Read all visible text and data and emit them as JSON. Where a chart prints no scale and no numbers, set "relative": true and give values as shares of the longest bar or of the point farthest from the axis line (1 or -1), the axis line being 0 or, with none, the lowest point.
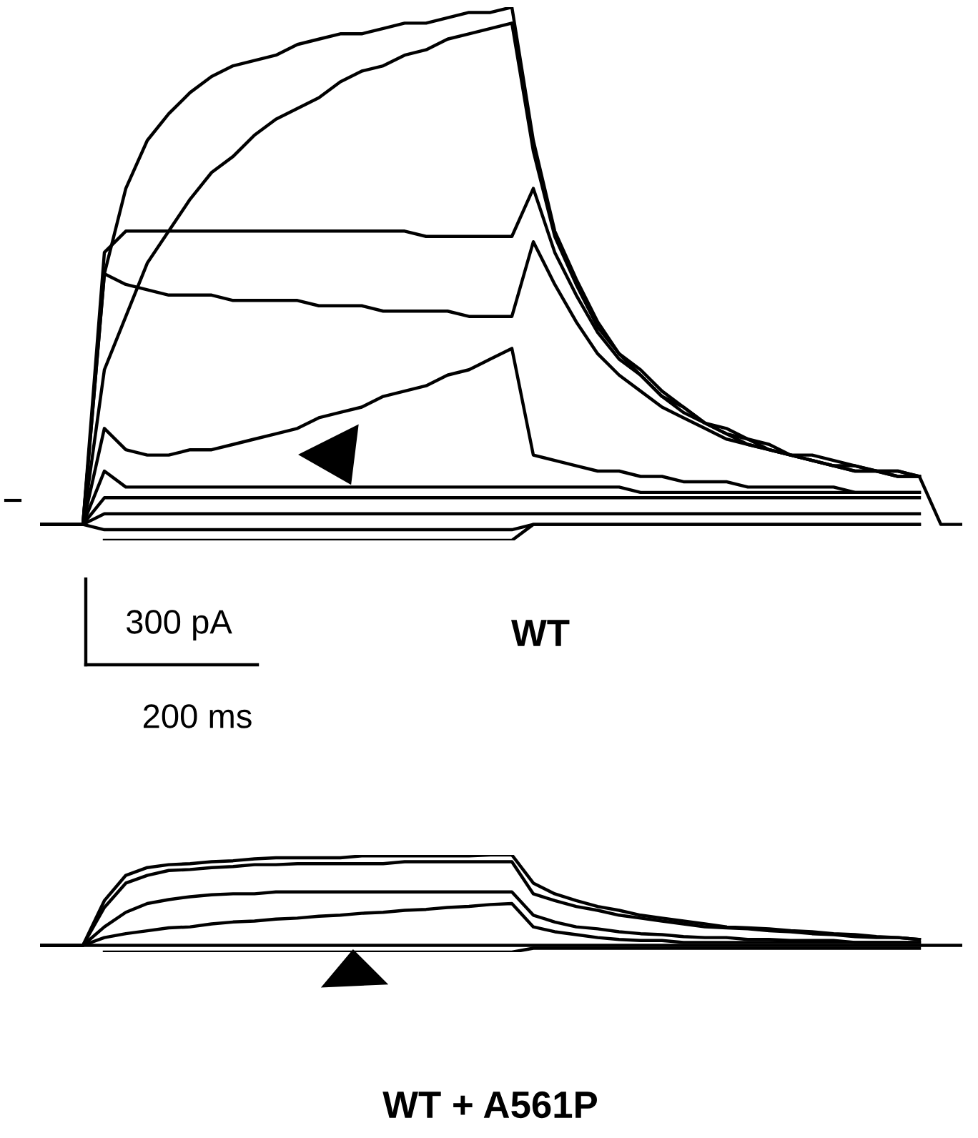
{
  "chart_data": [
    {
      "type": "line",
      "relative": true,
      "title": "WT",
      "annotations": [
        "300 pA",
        "200 ms"
      ],
      "categories": [
        null,
        null,
        null,
        null,
        null,
        null,
        null,
        null,
        null,
        null,
        null,
        null,
        null,
        null,
        null,
        null,
        null,
        null,
        null,
        null,
        null,
        null,
        null,
        null,
        null,
        null,
        null,
        null,
        null,
        null,
        null,
        null,
        null,
        null,
        null,
        null,
        null,
        null,
        null,
        null,
        null,
        null,
        null,
        null
      ],
      "series": [
        {
          "color": "#000000",
          "values": [
            0.03,
            0.03,
            0.03,
            0.5,
            0.66,
            0.75,
            0.8,
            0.84,
            0.87,
            0.89,
            0.9,
            0.91,
            0.93,
            0.94,
            0.95,
            0.95,
            0.96,
            0.97,
            0.97,
            0.98,
            0.99,
            0.99,
            1.0,
            0.75,
            0.58,
            0.49,
            0.41,
            0.35,
            0.32,
            0.28,
            0.25,
            0.22,
            0.21,
            0.19,
            0.18,
            0.16,
            0.16,
            0.15,
            0.14,
            0.13,
            0.13,
            0.12,
            0.03,
            0.03
          ]
        },
        {
          "color": "#000000",
          "values": [
            0.03,
            0.03,
            0.03,
            0.32,
            0.42,
            0.52,
            0.58,
            0.64,
            0.69,
            0.72,
            0.76,
            0.79,
            0.81,
            0.83,
            0.86,
            0.88,
            0.89,
            0.91,
            0.92,
            0.94,
            0.95,
            0.96,
            0.97,
            0.73,
            0.57,
            0.48,
            0.4,
            0.35,
            0.31,
            0.27,
            0.25,
            0.22,
            0.2,
            0.19,
            0.17,
            0.16,
            0.15,
            0.14,
            0.14,
            0.13,
            0.13,
            0.12,
            null,
            null
          ]
        },
        {
          "color": "#000000",
          "values": [
            0.03,
            0.03,
            0.03,
            0.54,
            0.58,
            0.58,
            0.58,
            0.58,
            0.58,
            0.58,
            0.58,
            0.58,
            0.58,
            0.58,
            0.58,
            0.58,
            0.58,
            0.58,
            0.57,
            0.57,
            0.57,
            0.57,
            0.57,
            0.66,
            0.54,
            0.46,
            0.39,
            0.34,
            0.31,
            0.27,
            0.24,
            0.22,
            0.2,
            0.18,
            0.17,
            0.16,
            0.15,
            0.14,
            0.13,
            0.13,
            0.12,
            0.12,
            null,
            null
          ]
        },
        {
          "color": "#000000",
          "values": [
            0.03,
            0.03,
            0.03,
            0.5,
            0.48,
            0.47,
            0.46,
            0.46,
            0.46,
            0.45,
            0.45,
            0.45,
            0.45,
            0.44,
            0.44,
            0.44,
            0.43,
            0.43,
            0.43,
            0.43,
            0.42,
            0.42,
            0.42,
            0.56,
            0.48,
            0.41,
            0.35,
            0.31,
            0.28,
            0.25,
            0.23,
            0.21,
            0.19,
            0.18,
            0.17,
            0.16,
            0.15,
            0.14,
            0.13,
            0.13,
            0.12,
            0.12,
            null,
            null
          ]
        },
        {
          "color": "#000000",
          "values": [
            0.03,
            0.03,
            0.03,
            0.21,
            0.17,
            0.16,
            0.16,
            0.17,
            0.17,
            0.18,
            0.19,
            0.2,
            0.21,
            0.23,
            0.24,
            0.25,
            0.27,
            0.28,
            0.29,
            0.31,
            0.32,
            0.34,
            0.36,
            0.16,
            0.15,
            0.14,
            0.13,
            0.13,
            0.12,
            0.12,
            0.11,
            0.11,
            0.11,
            0.1,
            0.1,
            0.1,
            0.1,
            0.1,
            0.09,
            0.09,
            0.09,
            0.09,
            null,
            null
          ]
        },
        {
          "color": "#000000",
          "values": [
            0.03,
            0.03,
            0.03,
            0.13,
            0.1,
            0.1,
            0.1,
            0.1,
            0.1,
            0.1,
            0.1,
            0.1,
            0.1,
            0.1,
            0.1,
            0.1,
            0.1,
            0.1,
            0.1,
            0.1,
            0.1,
            0.1,
            0.1,
            0.1,
            0.1,
            0.1,
            0.1,
            0.1,
            0.09,
            0.09,
            0.09,
            0.09,
            0.09,
            0.09,
            0.09,
            0.09,
            0.09,
            0.09,
            0.09,
            0.09,
            0.09,
            0.09,
            null,
            null
          ]
        },
        {
          "color": "#000000",
          "values": [
            0.03,
            0.03,
            0.03,
            0.08,
            0.08,
            0.08,
            0.08,
            0.08,
            0.08,
            0.08,
            0.08,
            0.08,
            0.08,
            0.08,
            0.08,
            0.08,
            0.08,
            0.08,
            0.08,
            0.08,
            0.08,
            0.08,
            0.08,
            0.08,
            0.08,
            0.08,
            0.08,
            0.08,
            0.08,
            0.08,
            0.08,
            0.08,
            0.08,
            0.08,
            0.08,
            0.08,
            0.08,
            0.08,
            0.08,
            0.08,
            0.08,
            0.08,
            null,
            null
          ]
        },
        {
          "color": "#000000",
          "values": [
            0.03,
            0.03,
            0.03,
            0.05,
            0.05,
            0.05,
            0.05,
            0.05,
            0.05,
            0.05,
            0.05,
            0.05,
            0.05,
            0.05,
            0.05,
            0.05,
            0.05,
            0.05,
            0.05,
            0.05,
            0.05,
            0.05,
            0.05,
            0.05,
            0.05,
            0.05,
            0.05,
            0.05,
            0.05,
            0.05,
            0.05,
            0.05,
            0.05,
            0.05,
            0.05,
            0.05,
            0.05,
            0.05,
            0.05,
            0.05,
            0.05,
            0.05,
            null,
            null
          ]
        },
        {
          "color": "#000000",
          "values": [
            0.03,
            0.03,
            0.03,
            0.02,
            0.02,
            0.02,
            0.02,
            0.02,
            0.02,
            0.02,
            0.02,
            0.02,
            0.02,
            0.02,
            0.02,
            0.02,
            0.02,
            0.02,
            0.02,
            0.02,
            0.02,
            0.02,
            0.02,
            0.03,
            0.03,
            0.03,
            0.03,
            0.03,
            0.03,
            0.03,
            0.03,
            0.03,
            0.03,
            0.03,
            0.03,
            0.03,
            0.03,
            0.03,
            0.03,
            0.03,
            0.03,
            0.03,
            null,
            null
          ]
        },
        {
          "color": "#000000",
          "values": [
            null,
            null,
            null,
            0.0,
            0.0,
            0.0,
            0.0,
            0.0,
            0.0,
            0.0,
            0.0,
            0.0,
            0.0,
            0.0,
            0.0,
            0.0,
            0.0,
            0.0,
            0.0,
            0.0,
            0.0,
            0.0,
            0.0,
            0.03,
            0.03,
            0.03,
            0.03,
            0.03,
            0.03,
            0.03,
            0.03,
            0.03,
            0.03,
            0.03,
            0.03,
            0.03,
            0.03,
            0.03,
            0.03,
            0.03,
            0.03,
            0.03,
            null,
            null
          ]
        }
      ]
    },
    {
      "type": "line",
      "relative": true,
      "title": "WT + A561P",
      "categories": [
        null,
        null,
        null,
        null,
        null,
        null,
        null,
        null,
        null,
        null,
        null,
        null,
        null,
        null,
        null,
        null,
        null,
        null,
        null,
        null,
        null,
        null,
        null,
        null,
        null,
        null,
        null,
        null,
        null,
        null,
        null,
        null,
        null,
        null,
        null,
        null,
        null,
        null,
        null,
        null,
        null,
        null,
        null,
        null
      ],
      "series": [
        {
          "color": "#000000",
          "values": [
            0.07,
            0.07,
            0.07,
            0.53,
            0.79,
            0.87,
            0.9,
            0.91,
            0.93,
            0.94,
            0.96,
            0.97,
            0.97,
            0.97,
            0.97,
            0.99,
            0.99,
            0.99,
            0.99,
            0.99,
            0.99,
            1.0,
            1.0,
            0.71,
            0.6,
            0.53,
            0.47,
            0.43,
            0.38,
            0.35,
            0.32,
            0.29,
            0.26,
            0.25,
            0.24,
            0.22,
            0.21,
            0.19,
            0.18,
            0.16,
            0.15,
            0.13,
            null,
            null
          ]
        },
        {
          "color": "#000000",
          "values": [
            0.07,
            0.07,
            0.07,
            0.46,
            0.71,
            0.79,
            0.84,
            0.85,
            0.87,
            0.88,
            0.9,
            0.9,
            0.91,
            0.91,
            0.91,
            0.91,
            0.91,
            0.93,
            0.93,
            0.93,
            0.93,
            0.93,
            0.93,
            0.6,
            0.53,
            0.47,
            0.43,
            0.38,
            0.35,
            0.32,
            0.29,
            0.26,
            0.25,
            0.24,
            0.22,
            0.21,
            0.19,
            0.18,
            0.16,
            0.15,
            0.15,
            0.13,
            null,
            null
          ]
        },
        {
          "color": "#000000",
          "values": [
            0.07,
            0.07,
            0.07,
            0.26,
            0.41,
            0.5,
            0.54,
            0.57,
            0.59,
            0.6,
            0.6,
            0.62,
            0.62,
            0.62,
            0.62,
            0.62,
            0.62,
            0.62,
            0.62,
            0.62,
            0.62,
            0.62,
            0.62,
            0.38,
            0.31,
            0.26,
            0.24,
            0.21,
            0.19,
            0.18,
            0.16,
            0.15,
            0.15,
            0.13,
            0.13,
            0.12,
            0.12,
            0.12,
            0.1,
            0.1,
            0.1,
            0.1,
            null,
            null
          ]
        },
        {
          "color": "#000000",
          "values": [
            0.07,
            0.07,
            0.07,
            0.15,
            0.19,
            0.22,
            0.25,
            0.26,
            0.29,
            0.31,
            0.32,
            0.34,
            0.35,
            0.37,
            0.38,
            0.4,
            0.41,
            0.43,
            0.44,
            0.46,
            0.47,
            0.49,
            0.5,
            0.26,
            0.21,
            0.18,
            0.15,
            0.13,
            0.12,
            0.12,
            0.1,
            0.1,
            0.1,
            0.1,
            0.1,
            0.1,
            0.1,
            0.1,
            0.1,
            0.1,
            0.1,
            0.1,
            null,
            null
          ]
        },
        {
          "color": "#000000",
          "values": [
            0.07,
            0.07,
            0.07,
            0.07,
            0.07,
            0.07,
            0.07,
            0.07,
            0.07,
            0.07,
            0.07,
            0.07,
            0.07,
            0.07,
            0.07,
            0.07,
            0.07,
            0.07,
            0.07,
            0.07,
            0.07,
            0.07,
            0.07,
            0.07,
            0.07,
            0.07,
            0.07,
            0.07,
            0.07,
            0.07,
            0.07,
            0.07,
            0.07,
            0.07,
            0.07,
            0.07,
            0.07,
            0.07,
            0.07,
            0.07,
            0.07,
            0.07,
            0.07,
            0.07
          ]
        },
        {
          "color": "#000000",
          "values": [
            null,
            null,
            null,
            0.0,
            0.0,
            0.0,
            0.0,
            0.0,
            0.0,
            0.0,
            0.0,
            0.0,
            0.0,
            0.0,
            0.0,
            0.0,
            0.0,
            0.0,
            0.0,
            0.0,
            0.0,
            0.0,
            0.0,
            0.04,
            0.04,
            0.04,
            0.04,
            0.04,
            0.04,
            0.04,
            0.04,
            0.04,
            0.04,
            0.04,
            0.04,
            0.04,
            0.04,
            0.04,
            0.04,
            0.04,
            0.04,
            0.04,
            null,
            null
          ]
        }
      ]
    }
  ]
}
